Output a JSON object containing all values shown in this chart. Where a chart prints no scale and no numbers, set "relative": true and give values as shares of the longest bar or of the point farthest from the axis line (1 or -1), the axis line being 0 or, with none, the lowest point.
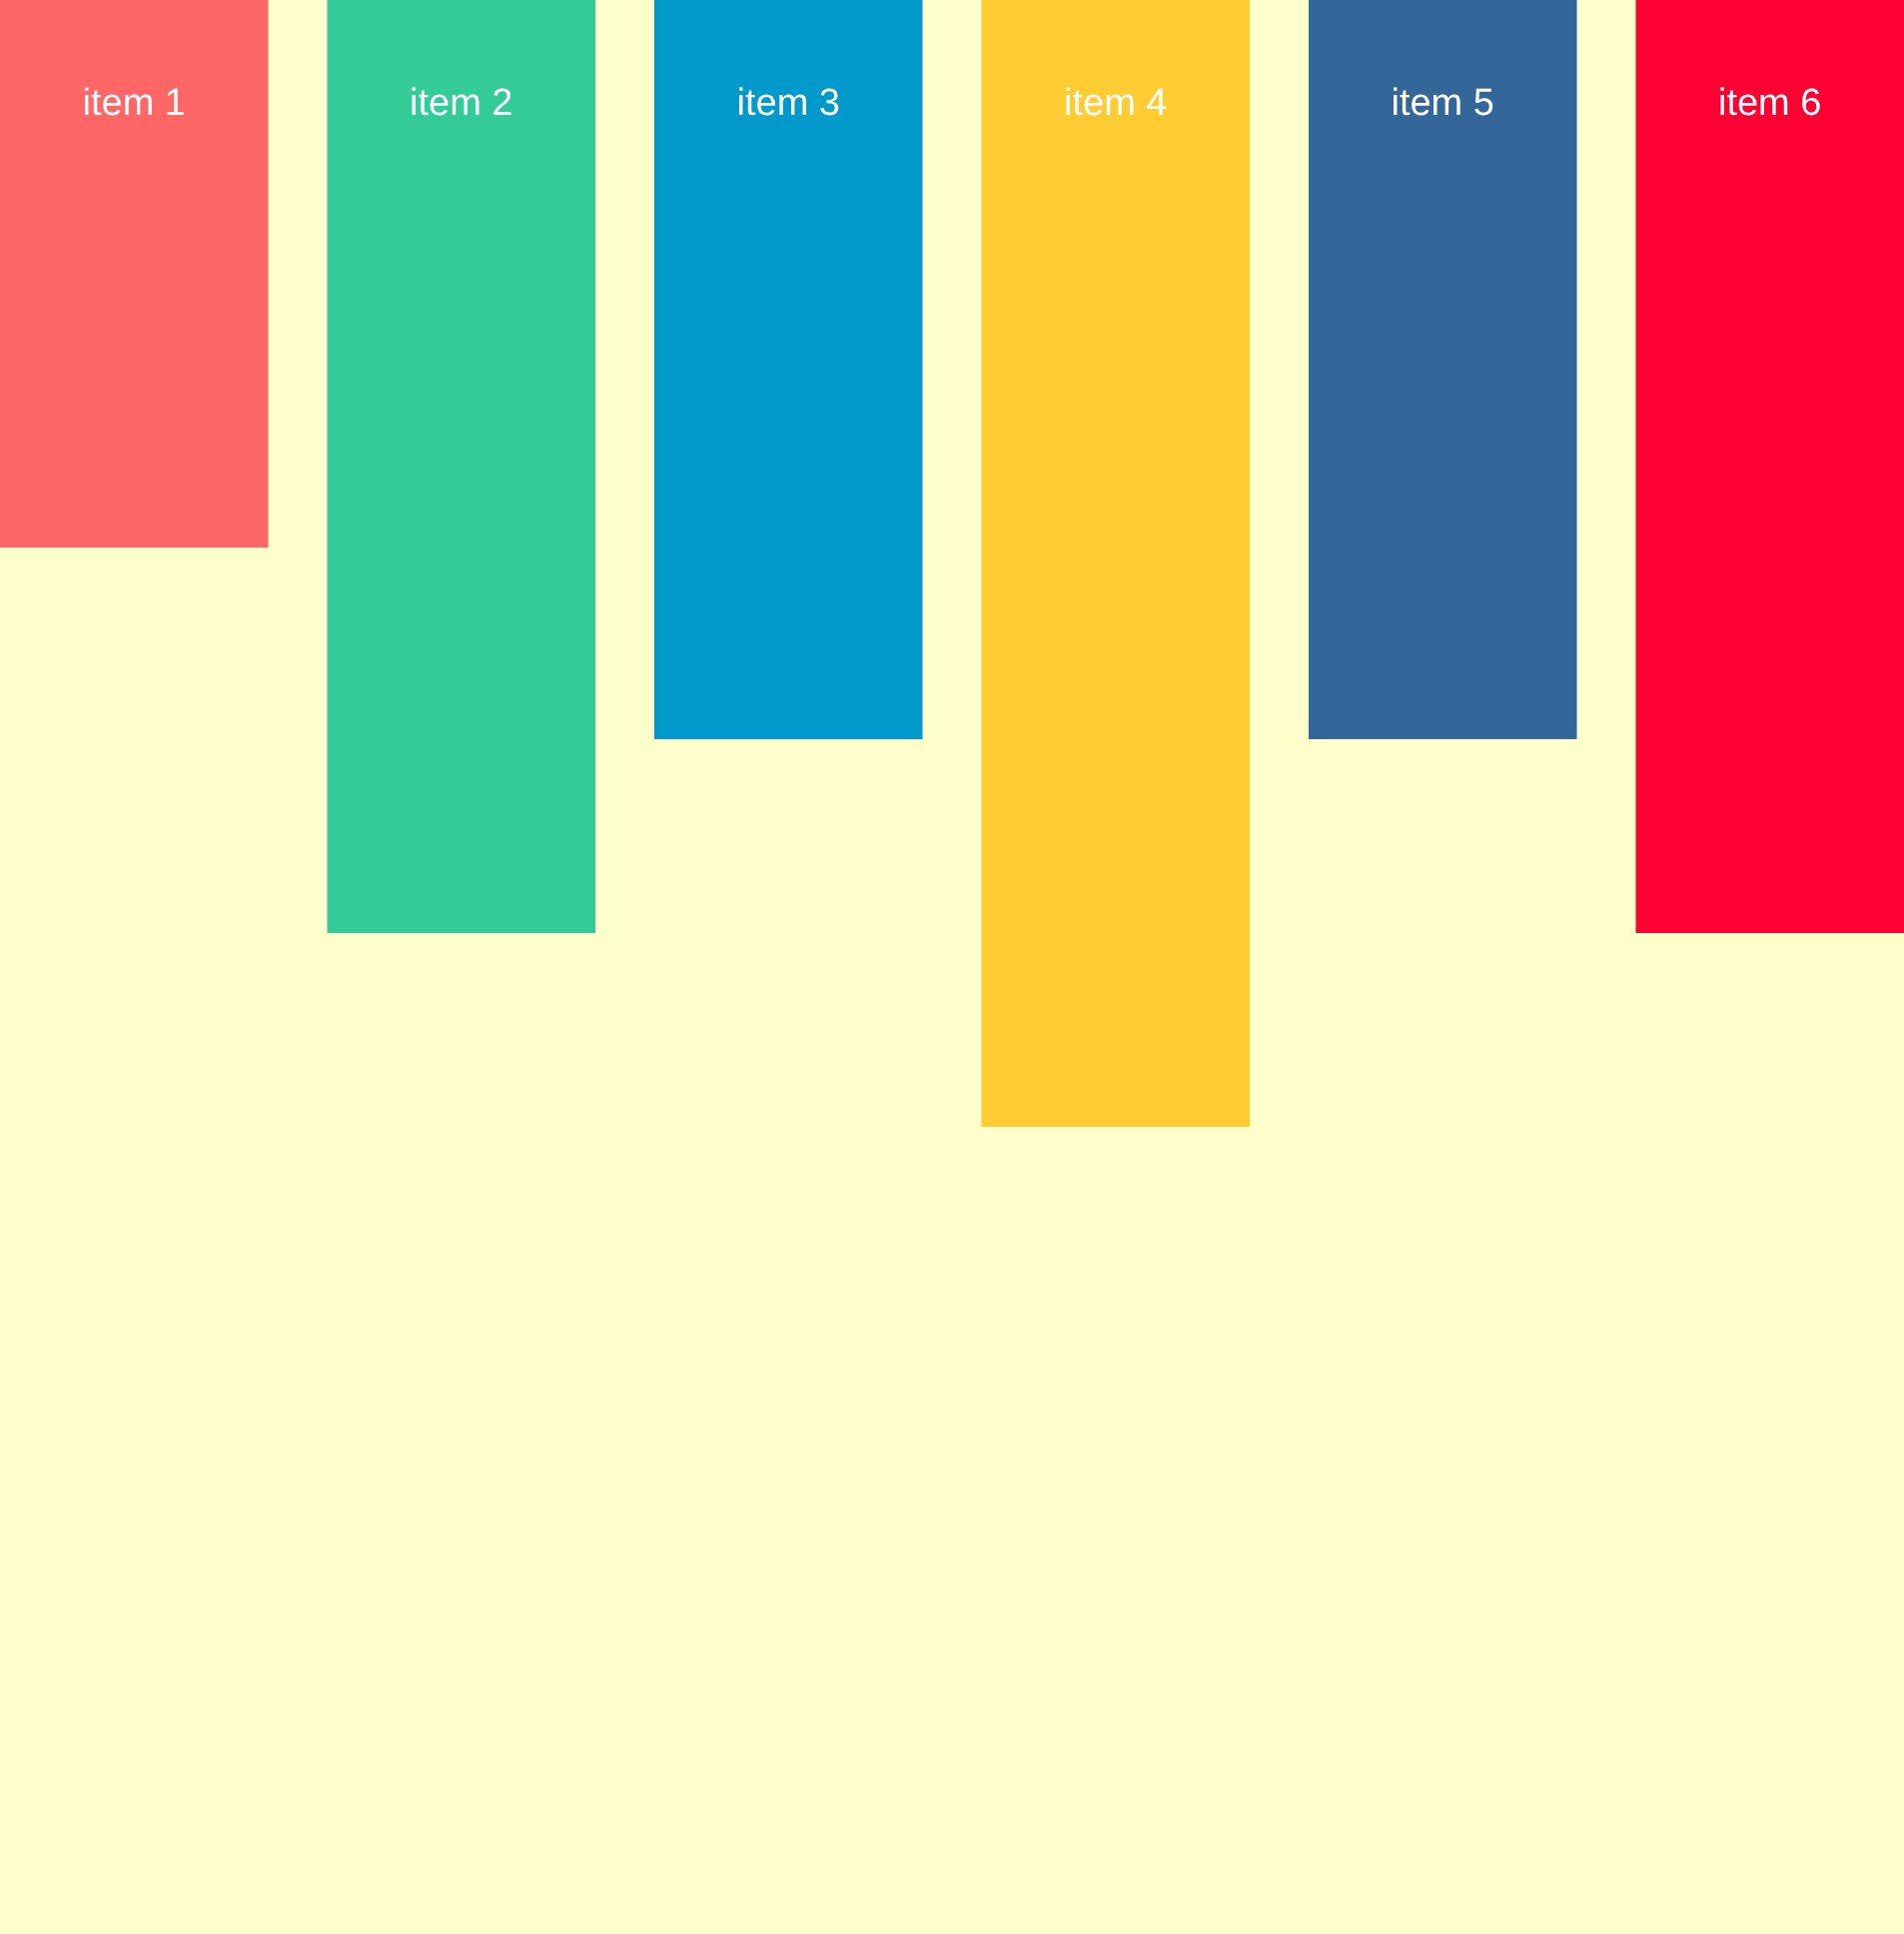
{
  "chart_data": {
    "type": "bar",
    "relative": true,
    "categories": [
      "item 1",
      "item 2",
      "item 3",
      "item 4",
      "item 5",
      "item 6"
    ],
    "values": [
      -0.486,
      -0.828,
      -0.656,
      -1,
      -0.656,
      -0.828
    ],
    "colors": [
      "#ff6666",
      "#33cc99",
      "#0099cc",
      "#ffcc33",
      "#336699",
      "#ff0033"
    ]
  }
}
